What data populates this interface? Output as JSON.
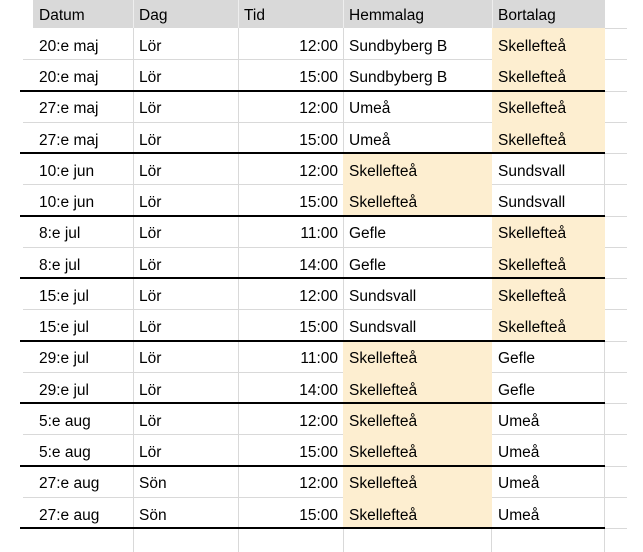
{
  "sheet": {
    "columns": [
      {
        "id": "datum",
        "label": "Datum"
      },
      {
        "id": "dag",
        "label": "Dag"
      },
      {
        "id": "tid",
        "label": "Tid"
      },
      {
        "id": "hemmalag",
        "label": "Hemmalag"
      },
      {
        "id": "bortalag",
        "label": "Bortalag"
      }
    ],
    "highlighted_team": "Skellefteå",
    "rows": [
      {
        "datum": "20:e maj",
        "dag": "Lör",
        "tid": "12:00",
        "hemmalag": "Sundbyberg B",
        "bortalag": "Skellefteå",
        "highlight_hemmalag": false,
        "highlight_bortalag": true,
        "group_end": false
      },
      {
        "datum": "20:e maj",
        "dag": "Lör",
        "tid": "15:00",
        "hemmalag": "Sundbyberg B",
        "bortalag": "Skellefteå",
        "highlight_hemmalag": false,
        "highlight_bortalag": true,
        "group_end": true
      },
      {
        "datum": "27:e maj",
        "dag": "Lör",
        "tid": "12:00",
        "hemmalag": "Umeå",
        "bortalag": "Skellefteå",
        "highlight_hemmalag": false,
        "highlight_bortalag": true,
        "group_end": false
      },
      {
        "datum": "27:e maj",
        "dag": "Lör",
        "tid": "15:00",
        "hemmalag": "Umeå",
        "bortalag": "Skellefteå",
        "highlight_hemmalag": false,
        "highlight_bortalag": true,
        "group_end": true
      },
      {
        "datum": "10:e jun",
        "dag": "Lör",
        "tid": "12:00",
        "hemmalag": "Skellefteå",
        "bortalag": "Sundsvall",
        "highlight_hemmalag": true,
        "highlight_bortalag": false,
        "group_end": false
      },
      {
        "datum": "10:e jun",
        "dag": "Lör",
        "tid": "15:00",
        "hemmalag": "Skellefteå",
        "bortalag": "Sundsvall",
        "highlight_hemmalag": true,
        "highlight_bortalag": false,
        "group_end": true
      },
      {
        "datum": "8:e jul",
        "dag": "Lör",
        "tid": "11:00",
        "hemmalag": "Gefle",
        "bortalag": "Skellefteå",
        "highlight_hemmalag": false,
        "highlight_bortalag": true,
        "group_end": false
      },
      {
        "datum": "8:e jul",
        "dag": "Lör",
        "tid": "14:00",
        "hemmalag": "Gefle",
        "bortalag": "Skellefteå",
        "highlight_hemmalag": false,
        "highlight_bortalag": true,
        "group_end": true
      },
      {
        "datum": "15:e jul",
        "dag": "Lör",
        "tid": "12:00",
        "hemmalag": "Sundsvall",
        "bortalag": "Skellefteå",
        "highlight_hemmalag": false,
        "highlight_bortalag": true,
        "group_end": false
      },
      {
        "datum": "15:e jul",
        "dag": "Lör",
        "tid": "15:00",
        "hemmalag": "Sundsvall",
        "bortalag": "Skellefteå",
        "highlight_hemmalag": false,
        "highlight_bortalag": true,
        "group_end": true
      },
      {
        "datum": "29:e jul",
        "dag": "Lör",
        "tid": "11:00",
        "hemmalag": "Skellefteå",
        "bortalag": "Gefle",
        "highlight_hemmalag": true,
        "highlight_bortalag": false,
        "group_end": false
      },
      {
        "datum": "29:e jul",
        "dag": "Lör",
        "tid": "14:00",
        "hemmalag": "Skellefteå",
        "bortalag": "Gefle",
        "highlight_hemmalag": true,
        "highlight_bortalag": false,
        "group_end": true
      },
      {
        "datum": "5:e aug",
        "dag": "Lör",
        "tid": "12:00",
        "hemmalag": "Skellefteå",
        "bortalag": "Umeå",
        "highlight_hemmalag": true,
        "highlight_bortalag": false,
        "group_end": false
      },
      {
        "datum": "5:e aug",
        "dag": "Lör",
        "tid": "15:00",
        "hemmalag": "Skellefteå",
        "bortalag": "Umeå",
        "highlight_hemmalag": true,
        "highlight_bortalag": false,
        "group_end": true
      },
      {
        "datum": "27:e aug",
        "dag": "Sön",
        "tid": "12:00",
        "hemmalag": "Skellefteå",
        "bortalag": "Umeå",
        "highlight_hemmalag": true,
        "highlight_bortalag": false,
        "group_end": false
      },
      {
        "datum": "27:e aug",
        "dag": "Sön",
        "tid": "15:00",
        "hemmalag": "Skellefteå",
        "bortalag": "Umeå",
        "highlight_hemmalag": true,
        "highlight_bortalag": false,
        "group_end": true
      }
    ],
    "colors": {
      "header_bg": "#D9D9D9",
      "highlight_bg": "#FDEED0",
      "gridline": "#D9D9D9",
      "group_border": "#000000",
      "text": "#000000"
    }
  }
}
